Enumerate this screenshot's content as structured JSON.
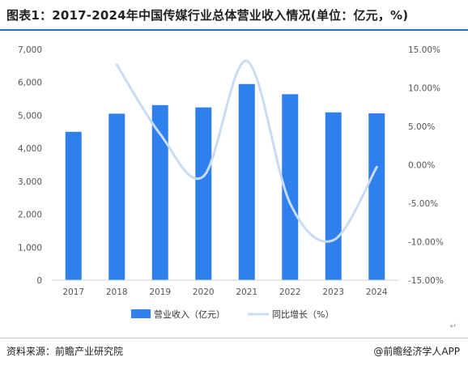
{
  "title": "图表1：2017-2024年中国传媒行业总体营业收入情况(单位：亿元，%)",
  "source": "资料来源：前瞻产业研究院",
  "brand": "@前瞻经济学人APP",
  "return_mark": "↵",
  "colors": {
    "bar": "#2f80ed",
    "line": "#c9dcf3",
    "title_bar": "#2e6bd6"
  },
  "chart_data": {
    "type": "bar",
    "categories": [
      "2017",
      "2018",
      "2019",
      "2020",
      "2021",
      "2022",
      "2023",
      "2024"
    ],
    "series": [
      {
        "name": "营业收入（亿元）",
        "type": "bar",
        "axis": "left",
        "values": [
          4500,
          5050,
          5310,
          5240,
          5950,
          5640,
          5090,
          5060
        ]
      },
      {
        "name": "同比增长（%）",
        "type": "line",
        "axis": "right",
        "smooth": true,
        "values": [
          null,
          13.0,
          4.0,
          -1.5,
          13.5,
          -5.0,
          -9.8,
          -0.3
        ]
      }
    ],
    "y_left": {
      "min": 0,
      "max": 7000,
      "ticks": [
        0,
        1000,
        2000,
        3000,
        4000,
        5000,
        6000,
        7000
      ],
      "tick_labels": [
        "0",
        "1,000",
        "2,000",
        "3,000",
        "4,000",
        "5,000",
        "6,000",
        "7,000"
      ]
    },
    "y_right": {
      "min": -15,
      "max": 15,
      "ticks": [
        -15,
        -10,
        -5,
        0,
        5,
        10,
        15
      ],
      "tick_labels": [
        "-15.00%",
        "-10.00%",
        "-5.00%",
        "0.00%",
        "5.00%",
        "10.00%",
        "15.00%"
      ]
    },
    "grid": false,
    "legend_position": "bottom-center"
  }
}
